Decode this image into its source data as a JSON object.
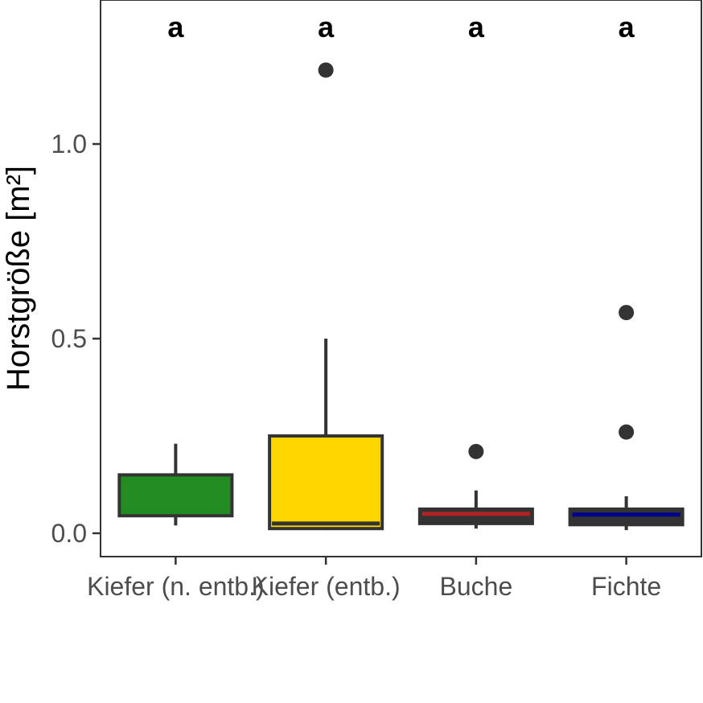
{
  "chart_data": {
    "type": "box",
    "ylabel": "Horstgröße [m²]",
    "xlabel": "",
    "ylim": [
      -0.06,
      1.37
    ],
    "yticks": [
      0.0,
      0.5,
      1.0
    ],
    "ytick_labels": [
      "0.0",
      "0.5",
      "1.0"
    ],
    "grid": false,
    "legend": "none",
    "categories": [
      "Kiefer (n. entb.)",
      "Kiefer (entb.)",
      "Buche",
      "Fichte"
    ],
    "boxes": [
      {
        "category": "Kiefer (n. entb.)",
        "whisker_low": 0.02,
        "q1": 0.045,
        "median": 0.057,
        "q3": 0.15,
        "whisker_high": 0.23,
        "outliers": [],
        "fill": "#228B22",
        "median_color": "#228B22",
        "letter": "a"
      },
      {
        "category": "Kiefer (entb.)",
        "whisker_low": 0.008,
        "q1": 0.012,
        "median": 0.025,
        "q3": 0.25,
        "whisker_high": 0.5,
        "outliers": [
          1.19
        ],
        "fill": "#FFD700",
        "median_color": "#333333",
        "letter": "a"
      },
      {
        "category": "Buche",
        "whisker_low": 0.012,
        "q1": 0.025,
        "median": 0.05,
        "q3": 0.062,
        "whisker_high": 0.11,
        "outliers": [
          0.21
        ],
        "fill": "#333333",
        "median_color": "#B22222",
        "letter": "a"
      },
      {
        "category": "Fichte",
        "whisker_low": 0.008,
        "q1": 0.022,
        "median": 0.048,
        "q3": 0.062,
        "whisker_high": 0.095,
        "outliers": [
          0.26,
          0.567
        ],
        "fill": "#333333",
        "median_color": "#00008B",
        "letter": "a"
      }
    ],
    "letter_y": 1.3
  }
}
